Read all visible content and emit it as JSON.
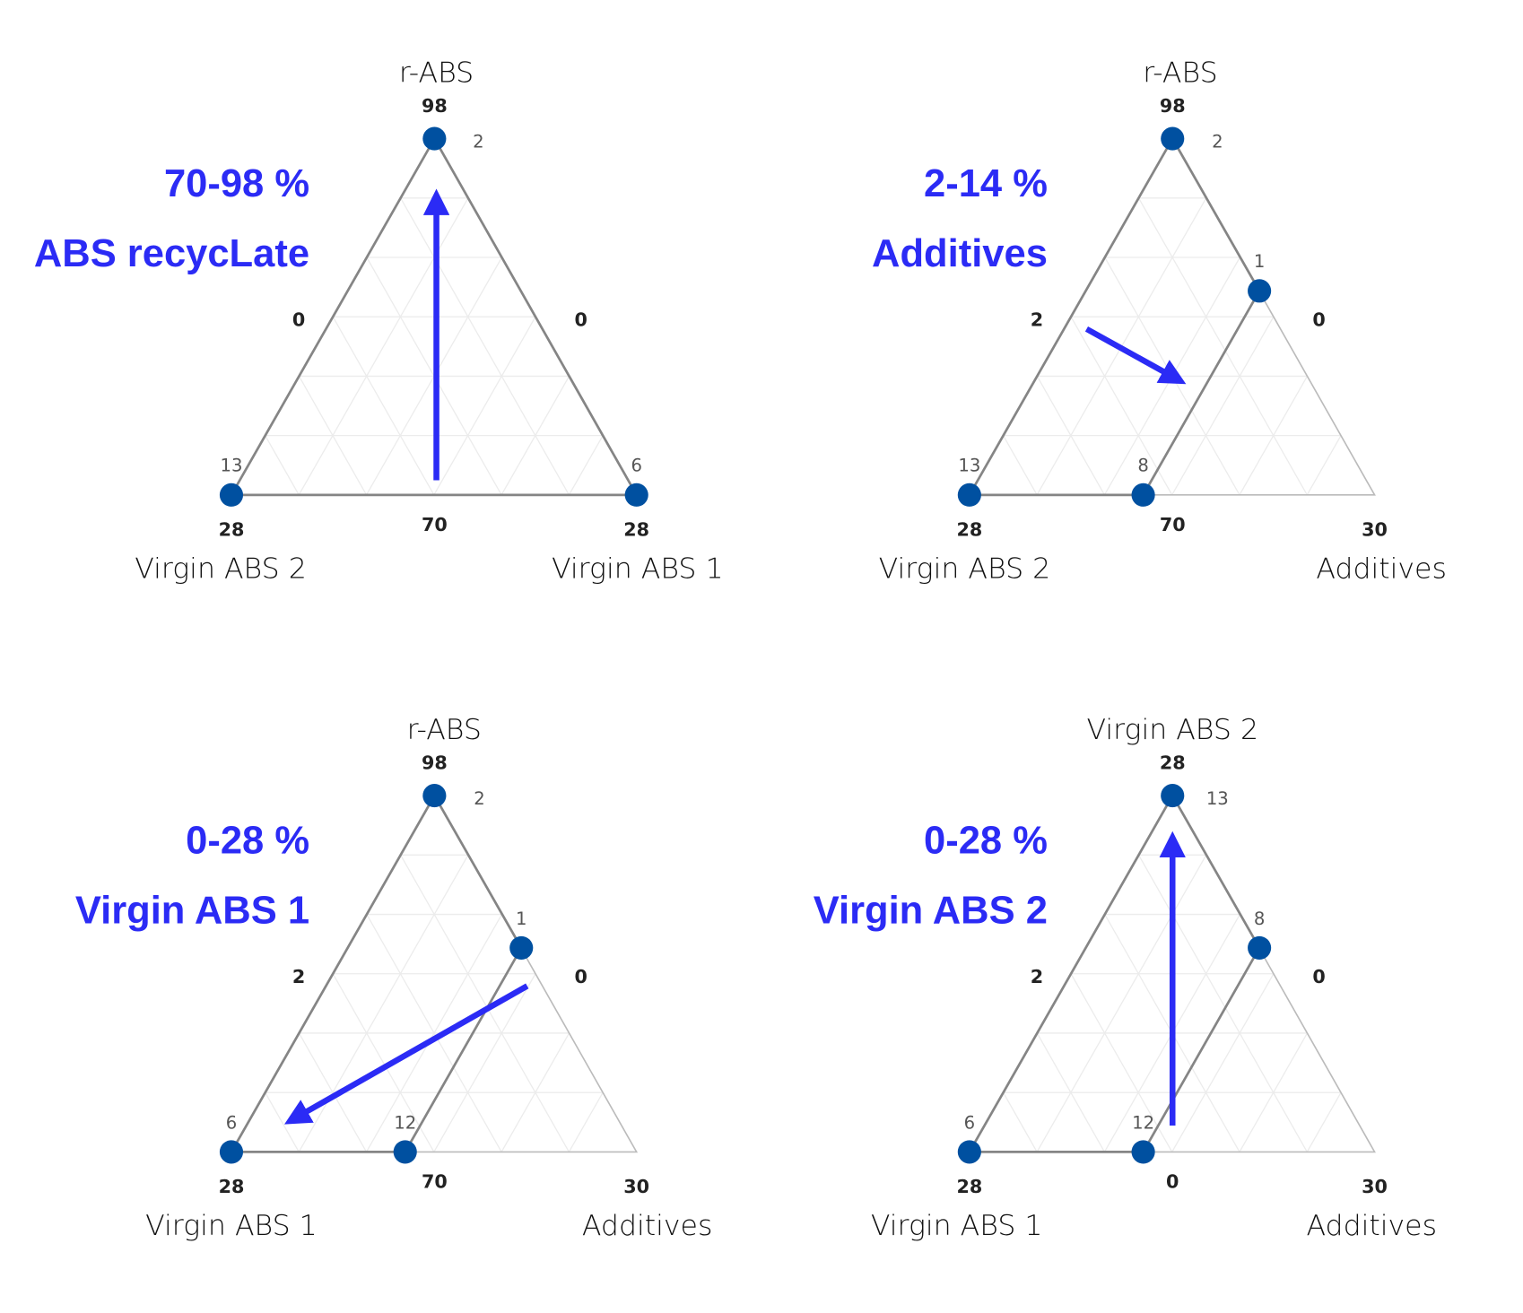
{
  "chart_data": [
    {
      "type": "ternary",
      "title": "70-98 %",
      "subtitle": "ABS recycLate",
      "axes": {
        "top": "r-ABS",
        "left": "Virgin ABS 2",
        "right": "Virgin ABS 1"
      },
      "ticks": {
        "top_max": "98",
        "top_minor": "2",
        "left_mid": "0",
        "right_mid": "0",
        "left_minor": "13",
        "left_max": "28",
        "bottom_mid": "70",
        "right_minor": "6",
        "right_max": "28"
      },
      "arrow_direction": "up",
      "colors": {
        "text": "#2b2bf5",
        "points": "#0050a0"
      }
    },
    {
      "type": "ternary",
      "title": "2-14 %",
      "subtitle": "Additives",
      "axes": {
        "top": "r-ABS",
        "left": "Virgin ABS 2",
        "right": "Additives"
      },
      "ticks": {
        "top_max": "98",
        "top_minor": "2",
        "inner_minor": "1",
        "right_mid": "0",
        "left_mid": "2",
        "left_minor": "13",
        "inner_bottom_minor": "8",
        "left_max": "28",
        "bottom_mid": "70",
        "right_max": "30"
      },
      "arrow_direction": "down-right",
      "colors": {
        "text": "#2b2bf5",
        "points": "#0050a0"
      }
    },
    {
      "type": "ternary",
      "title": "0-28 %",
      "subtitle": "Virgin ABS 1",
      "axes": {
        "top": "r-ABS",
        "left": "Virgin ABS 1",
        "right": "Additives"
      },
      "ticks": {
        "top_max": "98",
        "top_minor": "2",
        "inner_minor": "1",
        "right_mid": "0",
        "left_mid": "2",
        "left_minor": "6",
        "inner_bottom_minor": "12",
        "left_max": "28",
        "bottom_mid": "70",
        "right_max": "30"
      },
      "arrow_direction": "down-left",
      "colors": {
        "text": "#2b2bf5",
        "points": "#0050a0"
      }
    },
    {
      "type": "ternary",
      "title": "0-28 %",
      "subtitle": "Virgin ABS 2",
      "axes": {
        "top": "Virgin ABS 2",
        "left": "Virgin ABS 1",
        "right": "Additives"
      },
      "ticks": {
        "top_max": "28",
        "top_minor": "13",
        "inner_minor": "8",
        "right_mid": "0",
        "left_mid": "2",
        "left_minor": "6",
        "inner_bottom_minor": "12",
        "left_max": "28",
        "bottom_mid": "0",
        "right_max": "30"
      },
      "arrow_direction": "up",
      "colors": {
        "text": "#2b2bf5",
        "points": "#0050a0"
      }
    }
  ]
}
